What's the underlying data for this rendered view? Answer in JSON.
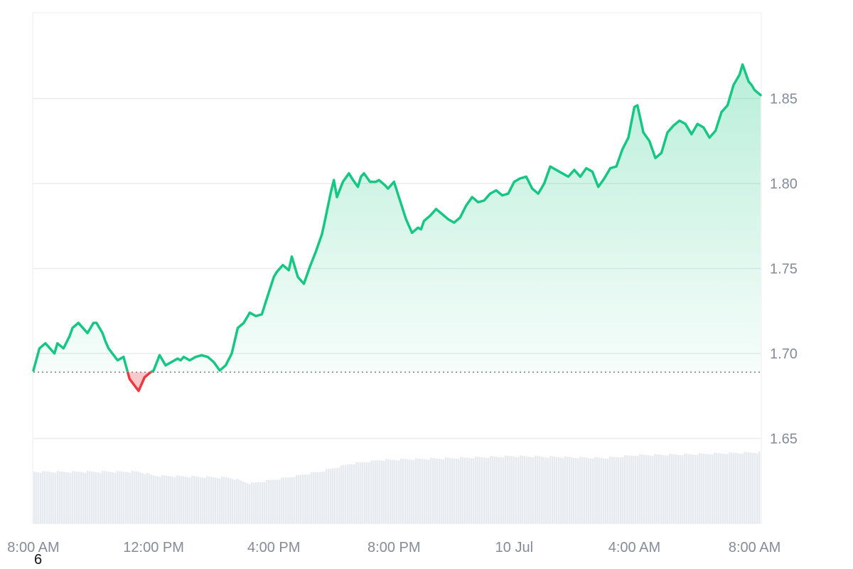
{
  "chart_data": {
    "type": "area",
    "title": "",
    "xlabel": "",
    "ylabel": "",
    "ylim": [
      1.6,
      1.9
    ],
    "x_range_hours": [
      0,
      24.2
    ],
    "grid": true,
    "y_ticks": [
      {
        "value": 1.65,
        "label": "1.65"
      },
      {
        "value": 1.7,
        "label": "1.70"
      },
      {
        "value": 1.75,
        "label": "1.75"
      },
      {
        "value": 1.8,
        "label": "1.80"
      },
      {
        "value": 1.85,
        "label": "1.85"
      }
    ],
    "x_ticks": [
      {
        "value": 0,
        "label": "8:00 AM"
      },
      {
        "value": 4,
        "label": "12:00 PM"
      },
      {
        "value": 8,
        "label": "4:00 PM"
      },
      {
        "value": 12,
        "label": "8:00 PM"
      },
      {
        "value": 16,
        "label": "10 Jul"
      },
      {
        "value": 20,
        "label": "4:00 AM"
      },
      {
        "value": 24,
        "label": "8:00 AM"
      }
    ],
    "baseline": 1.689,
    "colors": {
      "up_line": "#16c784",
      "up_fill": "#16c784",
      "down_line": "#ea3943",
      "down_fill": "#ea3943",
      "grid": "#e9ebee",
      "baseline": "#7a7f88",
      "volume": "#e6e9ee",
      "tick_text": "#858c99"
    },
    "price_series": {
      "name": "Price",
      "x": [
        0,
        0.2,
        0.4,
        0.7,
        0.8,
        1.0,
        1.2,
        1.3,
        1.5,
        1.6,
        1.8,
        2.0,
        2.1,
        2.3,
        2.4,
        2.5,
        2.8,
        2.9,
        3.0,
        3.2,
        3.5,
        3.7,
        3.9,
        4.0,
        4.2,
        4.4,
        4.6,
        4.8,
        4.9,
        5.0,
        5.2,
        5.4,
        5.6,
        5.8,
        6.0,
        6.2,
        6.4,
        6.6,
        6.8,
        7.0,
        7.2,
        7.4,
        7.6,
        7.8,
        8.0,
        8.1,
        8.3,
        8.5,
        8.6,
        8.8,
        9.0,
        9.2,
        9.4,
        9.6,
        9.7,
        9.9,
        10.0,
        10.1,
        10.3,
        10.5,
        10.6,
        10.8,
        10.9,
        11.0,
        11.2,
        11.4,
        11.5,
        11.7,
        11.8,
        12.0,
        12.2,
        12.4,
        12.6,
        12.8,
        12.9,
        13.0,
        13.2,
        13.4,
        13.6,
        13.8,
        14.0,
        14.2,
        14.4,
        14.6,
        14.8,
        15.0,
        15.2,
        15.4,
        15.6,
        15.8,
        16.0,
        16.2,
        16.4,
        16.6,
        16.8,
        17.0,
        17.2,
        17.4,
        17.6,
        17.8,
        18.0,
        18.2,
        18.4,
        18.6,
        18.8,
        19.0,
        19.2,
        19.4,
        19.6,
        19.8,
        20.0,
        20.1,
        20.3,
        20.5,
        20.7,
        20.9,
        21.1,
        21.3,
        21.5,
        21.7,
        21.9,
        22.1,
        22.3,
        22.5,
        22.7,
        22.9,
        23.1,
        23.3,
        23.5,
        23.6,
        23.8,
        23.9,
        24.0,
        24.2
      ],
      "values": [
        1.69,
        1.703,
        1.706,
        1.7,
        1.706,
        1.703,
        1.71,
        1.715,
        1.718,
        1.716,
        1.712,
        1.718,
        1.718,
        1.712,
        1.707,
        1.703,
        1.696,
        1.697,
        1.698,
        1.685,
        1.678,
        1.686,
        1.689,
        1.69,
        1.699,
        1.693,
        1.695,
        1.697,
        1.696,
        1.698,
        1.696,
        1.698,
        1.699,
        1.698,
        1.695,
        1.69,
        1.693,
        1.7,
        1.715,
        1.718,
        1.724,
        1.722,
        1.723,
        1.734,
        1.745,
        1.748,
        1.752,
        1.749,
        1.757,
        1.745,
        1.741,
        1.751,
        1.76,
        1.77,
        1.778,
        1.795,
        1.802,
        1.792,
        1.801,
        1.806,
        1.803,
        1.798,
        1.804,
        1.806,
        1.801,
        1.801,
        1.802,
        1.799,
        1.797,
        1.801,
        1.79,
        1.779,
        1.771,
        1.774,
        1.773,
        1.778,
        1.781,
        1.785,
        1.782,
        1.779,
        1.777,
        1.78,
        1.787,
        1.792,
        1.789,
        1.79,
        1.794,
        1.796,
        1.793,
        1.794,
        1.801,
        1.803,
        1.804,
        1.797,
        1.794,
        1.8,
        1.81,
        1.808,
        1.806,
        1.804,
        1.808,
        1.804,
        1.809,
        1.807,
        1.798,
        1.803,
        1.809,
        1.81,
        1.82,
        1.827,
        1.845,
        1.846,
        1.83,
        1.825,
        1.815,
        1.818,
        1.83,
        1.834,
        1.837,
        1.835,
        1.829,
        1.835,
        1.833,
        1.827,
        1.831,
        1.842,
        1.846,
        1.858,
        1.864,
        1.87,
        1.86,
        1.858,
        1.855,
        1.852
      ]
    },
    "volume_series": {
      "name": "Volume",
      "relative_levels": [
        {
          "x": 0,
          "v": 0.26
        },
        {
          "x": 3.5,
          "v": 0.26
        },
        {
          "x": 4.0,
          "v": 0.24
        },
        {
          "x": 6.5,
          "v": 0.23
        },
        {
          "x": 7.2,
          "v": 0.2
        },
        {
          "x": 8.0,
          "v": 0.22
        },
        {
          "x": 9.5,
          "v": 0.26
        },
        {
          "x": 10.5,
          "v": 0.3
        },
        {
          "x": 11.5,
          "v": 0.32
        },
        {
          "x": 14.0,
          "v": 0.33
        },
        {
          "x": 16.0,
          "v": 0.34
        },
        {
          "x": 19.0,
          "v": 0.33
        },
        {
          "x": 20.0,
          "v": 0.345
        },
        {
          "x": 22.0,
          "v": 0.35
        },
        {
          "x": 24.2,
          "v": 0.36
        }
      ]
    }
  },
  "footnote": "6"
}
